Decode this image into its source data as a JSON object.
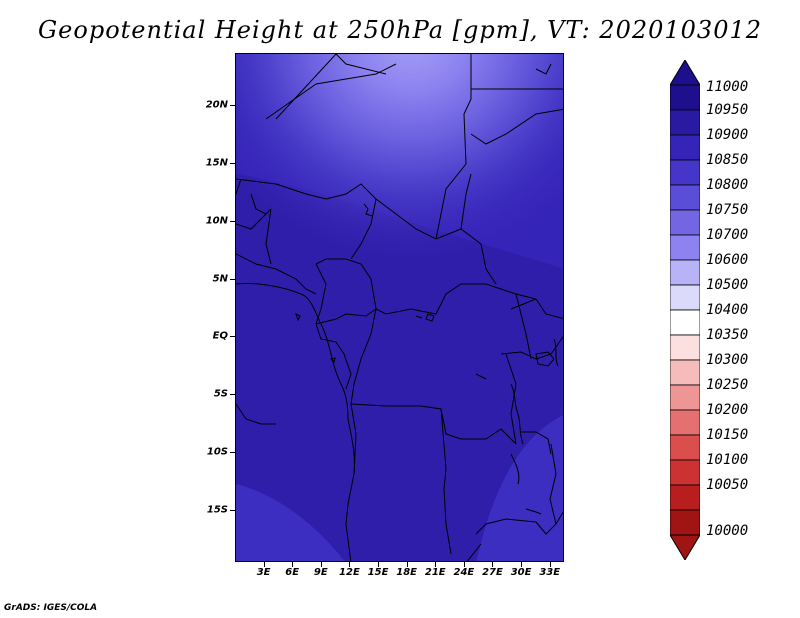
{
  "title": "Geopotential Height at 250hPa [gpm], VT: 2020103012",
  "credit": "GrADS: IGES/COLA",
  "map": {
    "lat_range": [
      -19.5,
      24.5
    ],
    "lon_range": [
      0,
      34.5
    ],
    "lat_ticks": [
      {
        "value": 20,
        "label": "20N"
      },
      {
        "value": 15,
        "label": "15N"
      },
      {
        "value": 10,
        "label": "10N"
      },
      {
        "value": 5,
        "label": "5N"
      },
      {
        "value": 0,
        "label": "EQ"
      },
      {
        "value": -5,
        "label": "5S"
      },
      {
        "value": -10,
        "label": "10S"
      },
      {
        "value": -15,
        "label": "15S"
      }
    ],
    "lon_ticks": [
      {
        "value": 3,
        "label": "3E"
      },
      {
        "value": 6,
        "label": "6E"
      },
      {
        "value": 9,
        "label": "9E"
      },
      {
        "value": 12,
        "label": "12E"
      },
      {
        "value": 15,
        "label": "15E"
      },
      {
        "value": 18,
        "label": "18E"
      },
      {
        "value": 21,
        "label": "21E"
      },
      {
        "value": 24,
        "label": "24E"
      },
      {
        "value": 27,
        "label": "27E"
      },
      {
        "value": 30,
        "label": "30E"
      },
      {
        "value": 33,
        "label": "33E"
      }
    ],
    "field_note_colors": {
      "max_fill": "#8c82f0",
      "mid_fill": "#5a4ed8",
      "base_fill": "#3524b8",
      "deep_fill": "#2f1eaa"
    }
  },
  "colorbar": {
    "levels": [
      "11000",
      "10950",
      "10900",
      "10850",
      "10800",
      "10750",
      "10700",
      "10600",
      "10500",
      "10400",
      "10350",
      "10300",
      "10250",
      "10200",
      "10150",
      "10100",
      "10050",
      "10000"
    ],
    "colors": [
      "#1e0f8c",
      "#2a1aa2",
      "#3524b8",
      "#4436c8",
      "#5a4ed8",
      "#7266e2",
      "#8c82f0",
      "#b8b2f6",
      "#dcdafa",
      "#ffffff",
      "#fce0e0",
      "#f6bcbc",
      "#ee9696",
      "#e47070",
      "#da4e4e",
      "#cc3232",
      "#b81e1e",
      "#a01414"
    ],
    "top_arrow_color": "#1e0f8c",
    "bottom_arrow_color": "#a01414"
  }
}
